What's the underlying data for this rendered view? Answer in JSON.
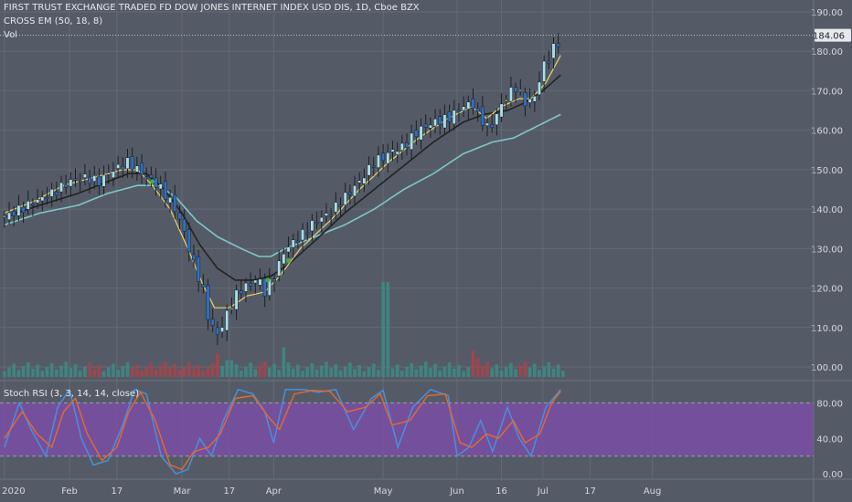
{
  "colors": {
    "background": "#555b66",
    "grid": "#646a75",
    "axis_text": "#d4d8de",
    "up_candle": "#a8e0ea",
    "down_candle": "#2f6fc2",
    "ema_fast": "#e8d36a",
    "ema_mid": "#222222",
    "ema_slow": "#7fc7c9",
    "vol_up": "#3c8a84",
    "vol_down": "#a9424a",
    "rsi_k": "#4a8fd9",
    "rsi_d": "#e8682e",
    "rsi_band": "#7a4fa6",
    "price_label_bg": "#e6e8ec",
    "cross_marker": "#3fae49"
  },
  "chart_data": [
    {
      "type": "candlestick",
      "title": "FIRST TRUST EXCHANGE TRADED FD DOW JONES INTERNET INDEX USD DIS, 1D, Cboe BZX",
      "overlay_label": "CROSS EM (50, 18, 8)",
      "volume_label": "Vol",
      "x_ticks": [
        "2020",
        "Feb",
        "17",
        "Mar",
        "17",
        "Apr",
        "May",
        "Jun",
        "16",
        "Jul",
        "17",
        "Aug"
      ],
      "y_ticks": [
        100,
        110,
        120,
        130,
        140,
        150,
        160,
        170,
        180,
        190
      ],
      "ylim": [
        97,
        193
      ],
      "last_price": "184.06",
      "last_value": 184.06,
      "close_path": [
        [
          0,
          138
        ],
        [
          8,
          141
        ],
        [
          16,
          144
        ],
        [
          22,
          147
        ],
        [
          27,
          148
        ],
        [
          32,
          147
        ],
        [
          37,
          150
        ],
        [
          42,
          152
        ],
        [
          45,
          150
        ],
        [
          52,
          146
        ],
        [
          57,
          141
        ],
        [
          60,
          136
        ],
        [
          64,
          126
        ],
        [
          67,
          120
        ],
        [
          69,
          112
        ],
        [
          72,
          108
        ],
        [
          75,
          113
        ],
        [
          78,
          118
        ],
        [
          82,
          121
        ],
        [
          86,
          122
        ],
        [
          88,
          119
        ],
        [
          91,
          123
        ],
        [
          95,
          130
        ],
        [
          100,
          133
        ],
        [
          105,
          137
        ],
        [
          110,
          139
        ],
        [
          115,
          143
        ],
        [
          120,
          147
        ],
        [
          125,
          152
        ],
        [
          130,
          154
        ],
        [
          135,
          156
        ],
        [
          140,
          160
        ],
        [
          145,
          162
        ],
        [
          150,
          163
        ],
        [
          155,
          166
        ],
        [
          158,
          167
        ],
        [
          161,
          163
        ],
        [
          164,
          160
        ],
        [
          167,
          165
        ],
        [
          170,
          169
        ],
        [
          173,
          171
        ],
        [
          176,
          167
        ],
        [
          179,
          168
        ],
        [
          182,
          176
        ],
        [
          185,
          180
        ],
        [
          188,
          184
        ]
      ],
      "ema_slow_path": [
        [
          0,
          136
        ],
        [
          12,
          139
        ],
        [
          25,
          141
        ],
        [
          35,
          144
        ],
        [
          45,
          146
        ],
        [
          52,
          146
        ],
        [
          58,
          143
        ],
        [
          65,
          137
        ],
        [
          72,
          133
        ],
        [
          80,
          130
        ],
        [
          86,
          128
        ],
        [
          90,
          128
        ],
        [
          95,
          130
        ],
        [
          105,
          133
        ],
        [
          115,
          136
        ],
        [
          125,
          140
        ],
        [
          135,
          145
        ],
        [
          145,
          149
        ],
        [
          155,
          154
        ],
        [
          165,
          157
        ],
        [
          172,
          158
        ],
        [
          180,
          161
        ],
        [
          188,
          164
        ]
      ],
      "ema_mid_path": [
        [
          0,
          138
        ],
        [
          12,
          141
        ],
        [
          25,
          144
        ],
        [
          35,
          147
        ],
        [
          42,
          149
        ],
        [
          48,
          149
        ],
        [
          54,
          145
        ],
        [
          60,
          139
        ],
        [
          66,
          131
        ],
        [
          72,
          125
        ],
        [
          78,
          122
        ],
        [
          84,
          122
        ],
        [
          90,
          123
        ],
        [
          96,
          126
        ],
        [
          105,
          132
        ],
        [
          115,
          139
        ],
        [
          125,
          145
        ],
        [
          135,
          151
        ],
        [
          145,
          157
        ],
        [
          155,
          162
        ],
        [
          162,
          164
        ],
        [
          170,
          165
        ],
        [
          176,
          167
        ],
        [
          182,
          170
        ],
        [
          188,
          174
        ]
      ],
      "ema_fast_path": [
        [
          0,
          139
        ],
        [
          10,
          142
        ],
        [
          20,
          146
        ],
        [
          30,
          148
        ],
        [
          40,
          150
        ],
        [
          45,
          150
        ],
        [
          50,
          146
        ],
        [
          56,
          140
        ],
        [
          62,
          130
        ],
        [
          67,
          121
        ],
        [
          71,
          115
        ],
        [
          76,
          115
        ],
        [
          82,
          118
        ],
        [
          88,
          119
        ],
        [
          93,
          123
        ],
        [
          100,
          130
        ],
        [
          110,
          137
        ],
        [
          120,
          145
        ],
        [
          130,
          152
        ],
        [
          140,
          158
        ],
        [
          150,
          163
        ],
        [
          158,
          166
        ],
        [
          163,
          163
        ],
        [
          168,
          166
        ],
        [
          174,
          168
        ],
        [
          178,
          168
        ],
        [
          183,
          172
        ],
        [
          188,
          179
        ]
      ],
      "cross_points": [
        [
          50,
          147
        ],
        [
          89,
          122
        ],
        [
          96,
          127
        ]
      ],
      "volume_spikes": [
        [
          72,
          0.2
        ],
        [
          76,
          0.14
        ],
        [
          94,
          0.25
        ],
        [
          129,
          0.8
        ],
        [
          158,
          0.22
        ],
        [
          160,
          0.16
        ]
      ]
    },
    {
      "type": "line",
      "label": "Stoch RSI (3, 3, 14, 14, close)",
      "y_ticks": [
        0,
        40,
        80
      ],
      "tick_labels": [
        "0.00",
        "40.00",
        "80.00"
      ],
      "ylim": [
        -6,
        104
      ],
      "band": [
        20,
        80
      ],
      "k_path": [
        [
          0,
          30
        ],
        [
          5,
          80
        ],
        [
          9,
          50
        ],
        [
          14,
          20
        ],
        [
          18,
          75
        ],
        [
          22,
          95
        ],
        [
          26,
          40
        ],
        [
          30,
          10
        ],
        [
          35,
          15
        ],
        [
          40,
          55
        ],
        [
          44,
          95
        ],
        [
          48,
          90
        ],
        [
          53,
          20
        ],
        [
          58,
          0
        ],
        [
          62,
          5
        ],
        [
          66,
          40
        ],
        [
          70,
          20
        ],
        [
          74,
          60
        ],
        [
          79,
          95
        ],
        [
          84,
          90
        ],
        [
          88,
          70
        ],
        [
          91,
          35
        ],
        [
          95,
          95
        ],
        [
          101,
          95
        ],
        [
          106,
          92
        ],
        [
          112,
          95
        ],
        [
          118,
          50
        ],
        [
          124,
          85
        ],
        [
          128,
          94
        ],
        [
          133,
          30
        ],
        [
          138,
          75
        ],
        [
          144,
          95
        ],
        [
          150,
          88
        ],
        [
          153,
          20
        ],
        [
          157,
          30
        ],
        [
          161,
          60
        ],
        [
          165,
          25
        ],
        [
          170,
          75
        ],
        [
          174,
          40
        ],
        [
          178,
          20
        ],
        [
          183,
          75
        ],
        [
          188,
          95
        ]
      ],
      "d_path": [
        [
          0,
          40
        ],
        [
          6,
          70
        ],
        [
          11,
          45
        ],
        [
          16,
          30
        ],
        [
          20,
          70
        ],
        [
          24,
          85
        ],
        [
          28,
          45
        ],
        [
          33,
          15
        ],
        [
          38,
          30
        ],
        [
          42,
          70
        ],
        [
          46,
          92
        ],
        [
          51,
          60
        ],
        [
          56,
          10
        ],
        [
          60,
          5
        ],
        [
          64,
          25
        ],
        [
          69,
          30
        ],
        [
          73,
          45
        ],
        [
          78,
          85
        ],
        [
          84,
          88
        ],
        [
          89,
          65
        ],
        [
          93,
          50
        ],
        [
          98,
          90
        ],
        [
          104,
          94
        ],
        [
          110,
          93
        ],
        [
          116,
          70
        ],
        [
          122,
          75
        ],
        [
          127,
          90
        ],
        [
          131,
          55
        ],
        [
          137,
          60
        ],
        [
          143,
          88
        ],
        [
          149,
          90
        ],
        [
          154,
          35
        ],
        [
          158,
          30
        ],
        [
          163,
          45
        ],
        [
          167,
          40
        ],
        [
          172,
          60
        ],
        [
          176,
          35
        ],
        [
          181,
          45
        ],
        [
          185,
          80
        ],
        [
          188,
          93
        ]
      ]
    }
  ]
}
